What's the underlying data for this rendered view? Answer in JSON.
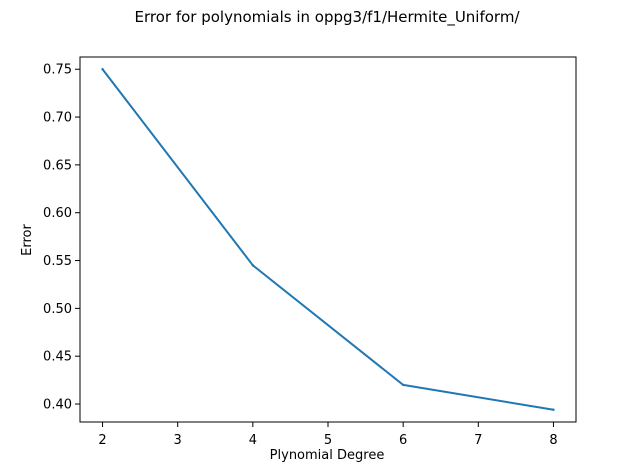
{
  "chart_data": {
    "type": "line",
    "title": "Error for polynomials in oppg3/f1/Hermite_Uniform/",
    "xlabel": "Plynomial Degree",
    "ylabel": "Error",
    "x": [
      2,
      4,
      6,
      8
    ],
    "series": [
      {
        "values": [
          0.75,
          0.545,
          0.42,
          0.394
        ]
      }
    ],
    "xticks": [
      "2",
      "3",
      "4",
      "5",
      "6",
      "7",
      "8"
    ],
    "yticks": [
      "0.40",
      "0.45",
      "0.50",
      "0.55",
      "0.60",
      "0.65",
      "0.70",
      "0.75"
    ],
    "xlim": [
      1.7,
      8.3
    ],
    "ylim": [
      0.3812,
      0.7628
    ],
    "grid": false,
    "line_color": "#1f77b4"
  }
}
